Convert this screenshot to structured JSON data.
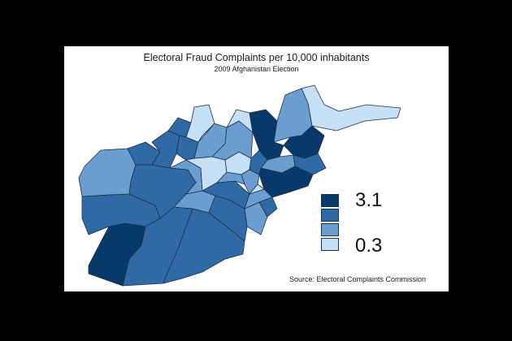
{
  "title": "Electoral Fraud Complaints per 10,000 inhabitants",
  "subtitle": "2009 Afghanistan Election",
  "source": "Source: Electoral Complaints Commission",
  "legend": {
    "max_label": "3.1",
    "min_label": "0.3",
    "classes": [
      "#08396b",
      "#2f6aa6",
      "#6b9ed0",
      "#c6e0f7"
    ]
  },
  "colors": {
    "background": "#000000",
    "panel": "#ffffff",
    "border": "#1f2f44"
  }
}
